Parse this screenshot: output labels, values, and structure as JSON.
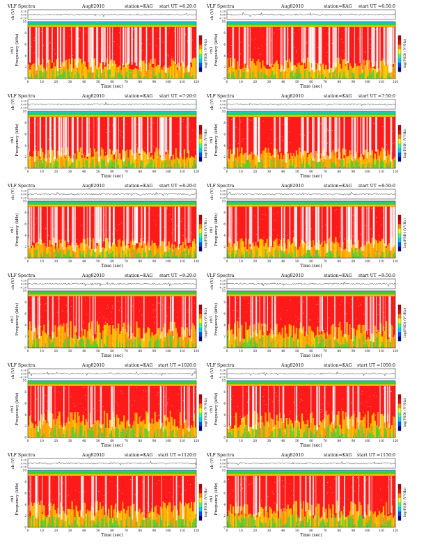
{
  "chart_data": [
    {
      "type": "heatmap",
      "title": "VLF Spectra",
      "date": "Aug82010",
      "station": "station=KAG",
      "start": "start UT =6:20:0"
    },
    {
      "type": "heatmap",
      "title": "VLF Spectra",
      "date": "Aug82010",
      "station": "station=KAG",
      "start": "start UT =6:50:0"
    },
    {
      "type": "heatmap",
      "title": "VLF Spectra",
      "date": "Aug82010",
      "station": "station=KAG",
      "start": "start UT =7:20:0"
    },
    {
      "type": "heatmap",
      "title": "VLF Spectra",
      "date": "Aug82010",
      "station": "station=KAG",
      "start": "start UT =7:50:0"
    },
    {
      "type": "heatmap",
      "title": "VLF Spectra",
      "date": "Aug82010",
      "station": "station=KAG",
      "start": "start UT =8:20:0"
    },
    {
      "type": "heatmap",
      "title": "VLF Spectra",
      "date": "Aug82010",
      "station": "station=KAG",
      "start": "start UT =8:50:0"
    },
    {
      "type": "heatmap",
      "title": "VLF Spectra",
      "date": "Aug82010",
      "station": "station=KAG",
      "start": "start UT =9:20:0"
    },
    {
      "type": "heatmap",
      "title": "VLF Spectra",
      "date": "Aug82010",
      "station": "station=KAG",
      "start": "start UT =9:50:0"
    },
    {
      "type": "heatmap",
      "title": "VLF Spectra",
      "date": "Aug82010",
      "station": "station=KAG",
      "start": "start UT =1020:0"
    },
    {
      "type": "heatmap",
      "title": "VLF Spectra",
      "date": "Aug82010",
      "station": "station=KAG",
      "start": "start UT =1050:0"
    },
    {
      "type": "heatmap",
      "title": "VLF Spectra",
      "date": "Aug82010",
      "station": "station=KAG",
      "start": "start UT =1120:0"
    },
    {
      "type": "heatmap",
      "title": "VLF Spectra",
      "date": "Aug82010",
      "station": "station=KAG",
      "start": "start UT =1150:0"
    }
  ],
  "common": {
    "waveform_ylabel": "ch (V)",
    "waveform_ticks": [
      "0.20",
      "0.00",
      "-0.20"
    ],
    "spec_ylabel": "Frequency (kHz)",
    "spec_ylabel_alt": "ch1",
    "freq_ticks": [
      "0",
      "2",
      "4",
      "6",
      "8",
      "10"
    ],
    "freq_range": [
      0,
      10
    ],
    "time_ticks": [
      "0",
      "10",
      "20",
      "30",
      "40",
      "50",
      "60",
      "70",
      "80",
      "90",
      "100",
      "110",
      "120"
    ],
    "time_range": [
      0,
      120
    ],
    "xlabel": "Time (sec)",
    "colorbar_label": "log(PSD) (V²/Hz)",
    "colorbar_colors": [
      "#000080",
      "#0050ff",
      "#00d0ff",
      "#40ff80",
      "#ffff00",
      "#ff9000",
      "#ff0000",
      "#b00000"
    ]
  },
  "colors": {
    "high": "#ff1a1a",
    "mid": "#ffe000",
    "low": "#35d23c",
    "cap_cyan": "#18c6d8",
    "trace": "#222222",
    "frame": "#333333"
  }
}
